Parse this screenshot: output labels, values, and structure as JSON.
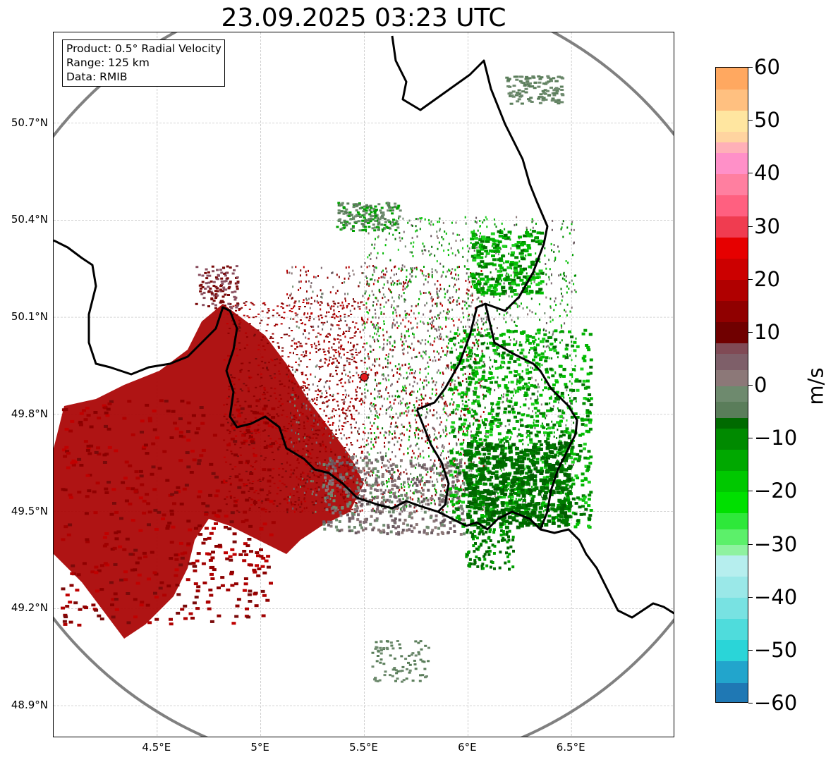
{
  "title": "23.09.2025 03:23 UTC",
  "info_box": {
    "product": "Product: 0.5° Radial Velocity",
    "range": "Range: 125 km",
    "data": "Data: RMIB"
  },
  "map": {
    "lon_range": [
      4.0,
      7.0
    ],
    "lat_range": [
      48.8,
      50.98
    ],
    "radar_site": {
      "lon": 5.5,
      "lat": 49.915
    },
    "range_ring_km": 125,
    "gridlines": true,
    "lat_ticks": [
      {
        "value": 50.7,
        "label": "50.7°N"
      },
      {
        "value": 50.4,
        "label": "50.4°N"
      },
      {
        "value": 50.1,
        "label": "50.1°N"
      },
      {
        "value": 49.8,
        "label": "49.8°N"
      },
      {
        "value": 49.5,
        "label": "49.5°N"
      },
      {
        "value": 49.2,
        "label": "49.2°N"
      },
      {
        "value": 48.9,
        "label": "48.9°N"
      }
    ],
    "lon_ticks": [
      {
        "value": 4.5,
        "label": "4.5°E"
      },
      {
        "value": 5.0,
        "label": "5°E"
      },
      {
        "value": 5.5,
        "label": "5.5°E"
      },
      {
        "value": 6.0,
        "label": "6°E"
      },
      {
        "value": 6.5,
        "label": "6.5°E"
      }
    ],
    "colors": {
      "ring": "#808080",
      "border": "#000000",
      "grid": "#bbbbbb",
      "site_fill": "#e31a1c"
    }
  },
  "colorbar": {
    "unit": "m/s",
    "range": [
      -60,
      60
    ],
    "ticks": [
      "60",
      "50",
      "40",
      "30",
      "20",
      "10",
      "0",
      "−10",
      "−20",
      "−30",
      "−40",
      "−50",
      "−60"
    ],
    "stops": [
      {
        "v": -60,
        "c": "#1f78b4"
      },
      {
        "v": -56,
        "c": "#22a5cc"
      },
      {
        "v": -52,
        "c": "#2ad5d8"
      },
      {
        "v": -48,
        "c": "#4fdcdc"
      },
      {
        "v": -44,
        "c": "#78e2e2"
      },
      {
        "v": -40,
        "c": "#9ae8e8"
      },
      {
        "v": -36,
        "c": "#b6eeee"
      },
      {
        "v": -32,
        "c": "#8ff2a0"
      },
      {
        "v": -30,
        "c": "#5cf06a"
      },
      {
        "v": -27,
        "c": "#2ee83a"
      },
      {
        "v": -24,
        "c": "#00e000"
      },
      {
        "v": -20,
        "c": "#00c800"
      },
      {
        "v": -16,
        "c": "#00a800"
      },
      {
        "v": -12,
        "c": "#008a00"
      },
      {
        "v": -8,
        "c": "#006a00"
      },
      {
        "v": -6,
        "c": "#5a7d5a"
      },
      {
        "v": -3,
        "c": "#6e8a6e"
      },
      {
        "v": 0,
        "c": "#8c7878"
      },
      {
        "v": 3,
        "c": "#7e5f69"
      },
      {
        "v": 6,
        "c": "#804a55"
      },
      {
        "v": 8,
        "c": "#700000"
      },
      {
        "v": 12,
        "c": "#900000"
      },
      {
        "v": 16,
        "c": "#b00000"
      },
      {
        "v": 20,
        "c": "#cc0000"
      },
      {
        "v": 24,
        "c": "#e60000"
      },
      {
        "v": 28,
        "c": "#f03c50"
      },
      {
        "v": 32,
        "c": "#ff6080"
      },
      {
        "v": 36,
        "c": "#ff7fa0"
      },
      {
        "v": 40,
        "c": "#ff90c8"
      },
      {
        "v": 44,
        "c": "#ffb0b8"
      },
      {
        "v": 46,
        "c": "#ffd4a0"
      },
      {
        "v": 48,
        "c": "#ffe6a0"
      },
      {
        "v": 52,
        "c": "#ffc080"
      },
      {
        "v": 56,
        "c": "#ffa860"
      },
      {
        "v": 60,
        "c": "#ff9a50"
      }
    ]
  }
}
